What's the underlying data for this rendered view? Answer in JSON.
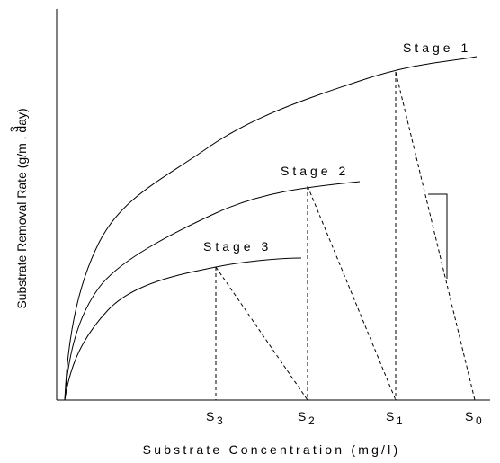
{
  "axes": {
    "x_label": "Substrate Concentration (mg/l)",
    "y_label": "Substrate Removal Rate (g/m . day)",
    "y_label_sup": "3"
  },
  "stages": [
    {
      "label": "Stage 1"
    },
    {
      "label": "Stage 2"
    },
    {
      "label": "Stage 3"
    }
  ],
  "points": [
    {
      "label": "S",
      "sub": "3"
    },
    {
      "label": "S",
      "sub": "2"
    },
    {
      "label": "S",
      "sub": "1"
    },
    {
      "label": "S",
      "sub": "0"
    }
  ]
}
